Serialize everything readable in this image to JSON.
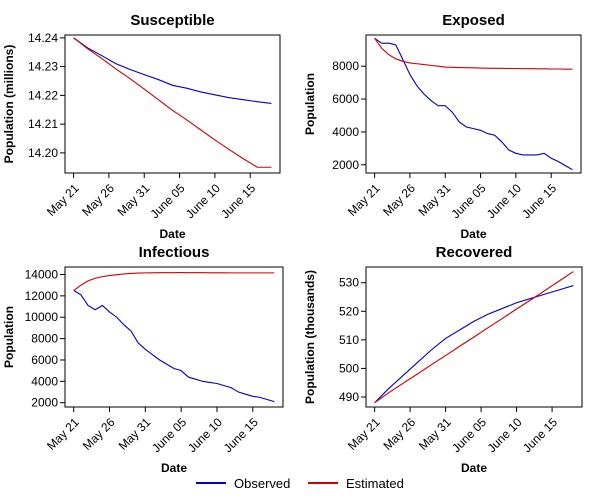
{
  "colors": {
    "observed": "#0000cc",
    "estimated": "#cc0000"
  },
  "legend": [
    {
      "name": "Observed",
      "color": "#0000cc"
    },
    {
      "name": "Estimated",
      "color": "#cc0000"
    }
  ],
  "chart_data": [
    {
      "type": "line",
      "title": "Susceptible",
      "xlabel": "Date",
      "ylabel": "Population (millions)",
      "x_tick_labels": [
        "May 21",
        "May 26",
        "May 31",
        "June 05",
        "June 10",
        "June 15"
      ],
      "y_ticks": [
        14.2,
        14.21,
        14.22,
        14.23,
        14.24
      ],
      "y_tick_labels": [
        "14.20",
        "14.21",
        "14.22",
        "14.23",
        "14.24"
      ],
      "ylim": [
        14.193,
        14.241
      ],
      "x": [
        "May 21",
        "May 23",
        "May 25",
        "May 27",
        "May 29",
        "May 31",
        "June 02",
        "June 04",
        "June 06",
        "June 08",
        "June 10",
        "June 12",
        "June 14",
        "June 16",
        "June 18"
      ],
      "series": [
        {
          "name": "Observed",
          "values": [
            14.24,
            14.2365,
            14.2338,
            14.231,
            14.229,
            14.2272,
            14.2255,
            14.2235,
            14.2225,
            14.2212,
            14.2202,
            14.2192,
            14.2185,
            14.2178,
            14.2172
          ]
        },
        {
          "name": "Estimated",
          "values": [
            14.24,
            14.2362,
            14.2328,
            14.2292,
            14.2258,
            14.2222,
            14.2185,
            14.2148,
            14.2115,
            14.208,
            14.2045,
            14.2012,
            14.198,
            14.195,
            14.195
          ]
        }
      ]
    },
    {
      "type": "line",
      "title": "Exposed",
      "xlabel": "Date",
      "ylabel": "Population",
      "x_tick_labels": [
        "May 21",
        "May 26",
        "May 31",
        "June 05",
        "June 10",
        "June 15"
      ],
      "y_ticks": [
        2000,
        4000,
        6000,
        8000
      ],
      "y_tick_labels": [
        "2000",
        "4000",
        "6000",
        "8000"
      ],
      "ylim": [
        1500,
        9900
      ],
      "x": [
        "May 21",
        "May 22",
        "May 23",
        "May 24",
        "May 25",
        "May 26",
        "May 27",
        "May 28",
        "May 29",
        "May 30",
        "May 31",
        "June 01",
        "June 02",
        "June 03",
        "June 04",
        "June 05",
        "June 06",
        "June 07",
        "June 08",
        "June 09",
        "June 10",
        "June 11",
        "June 12",
        "June 13",
        "June 14",
        "June 15",
        "June 16",
        "June 17",
        "June 18"
      ],
      "series": [
        {
          "name": "Observed",
          "values": [
            9700,
            9400,
            9400,
            9300,
            8400,
            7500,
            6800,
            6300,
            5900,
            5600,
            5600,
            5200,
            4600,
            4300,
            4200,
            4100,
            3900,
            3800,
            3400,
            2900,
            2700,
            2600,
            2600,
            2600,
            2700,
            2400,
            2200,
            1950,
            1700
          ]
        },
        {
          "name": "Estimated",
          "values": [
            9700,
            9100,
            8700,
            8450,
            8300,
            8200,
            8150,
            8100,
            8050,
            8000,
            7950,
            7930,
            7920,
            7910,
            7900,
            7890,
            7880,
            7870,
            7870,
            7860,
            7860,
            7850,
            7850,
            7840,
            7840,
            7830,
            7830,
            7820,
            7820
          ]
        }
      ]
    },
    {
      "type": "line",
      "title": "Infectious",
      "xlabel": "Date",
      "ylabel": "Population",
      "x_tick_labels": [
        "May 21",
        "May 26",
        "May 31",
        "June 05",
        "June 10",
        "June 15"
      ],
      "y_ticks": [
        2000,
        4000,
        6000,
        8000,
        10000,
        12000,
        14000
      ],
      "y_tick_labels": [
        "2000",
        "4000",
        "6000",
        "8000",
        "10000",
        "12000",
        "14000"
      ],
      "ylim": [
        1600,
        14700
      ],
      "x": [
        "May 21",
        "May 22",
        "May 23",
        "May 24",
        "May 25",
        "May 26",
        "May 27",
        "May 28",
        "May 29",
        "May 30",
        "May 31",
        "June 01",
        "June 02",
        "June 03",
        "June 04",
        "June 05",
        "June 06",
        "June 07",
        "June 08",
        "June 09",
        "June 10",
        "June 11",
        "June 12",
        "June 13",
        "June 14",
        "June 15",
        "June 16",
        "June 17",
        "June 18"
      ],
      "series": [
        {
          "name": "Observed",
          "values": [
            12500,
            12100,
            11100,
            10700,
            11100,
            10500,
            10000,
            9300,
            8700,
            7600,
            7000,
            6500,
            6000,
            5600,
            5200,
            5000,
            4400,
            4200,
            4000,
            3900,
            3800,
            3600,
            3400,
            3000,
            2800,
            2600,
            2500,
            2300,
            2100
          ]
        },
        {
          "name": "Estimated",
          "values": [
            12500,
            13000,
            13400,
            13650,
            13800,
            13900,
            13980,
            14050,
            14100,
            14130,
            14150,
            14160,
            14165,
            14170,
            14170,
            14175,
            14170,
            14170,
            14165,
            14160,
            14160,
            14155,
            14150,
            14150,
            14150,
            14150,
            14150,
            14150,
            14150
          ]
        }
      ]
    },
    {
      "type": "line",
      "title": "Recovered",
      "xlabel": "Date",
      "ylabel": "Population (thousands)",
      "x_tick_labels": [
        "May 21",
        "May 26",
        "May 31",
        "June 05",
        "June 10",
        "June 15"
      ],
      "y_ticks": [
        490,
        500,
        510,
        520,
        530
      ],
      "y_tick_labels": [
        "490",
        "500",
        "510",
        "520",
        "530"
      ],
      "ylim": [
        486.5,
        535.5
      ],
      "x": [
        "May 21",
        "May 23",
        "May 25",
        "May 27",
        "May 29",
        "May 31",
        "June 02",
        "June 04",
        "June 06",
        "June 08",
        "June 10",
        "June 12",
        "June 14",
        "June 16",
        "June 18"
      ],
      "series": [
        {
          "name": "Observed",
          "values": [
            488.0,
            493.0,
            497.5,
            502.0,
            506.5,
            510.5,
            513.5,
            516.5,
            519.0,
            521.0,
            523.0,
            524.5,
            526.0,
            527.5,
            529.0
          ]
        },
        {
          "name": "Estimated",
          "values": [
            488.0,
            491.5,
            494.8,
            498.0,
            501.3,
            504.5,
            507.8,
            511.0,
            514.3,
            517.5,
            520.8,
            524.0,
            527.3,
            530.6,
            533.9
          ]
        }
      ]
    }
  ]
}
